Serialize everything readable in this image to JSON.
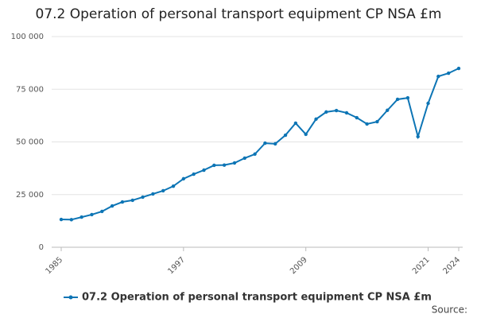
{
  "chart_data": {
    "type": "line",
    "title": "07.2 Operation of personal transport equipment CP NSA £m",
    "x": [
      1985,
      1986,
      1987,
      1988,
      1989,
      1990,
      1991,
      1992,
      1993,
      1994,
      1995,
      1996,
      1997,
      1998,
      1999,
      2000,
      2001,
      2002,
      2003,
      2004,
      2005,
      2006,
      2007,
      2008,
      2009,
      2010,
      2011,
      2012,
      2013,
      2014,
      2015,
      2016,
      2017,
      2018,
      2019,
      2020,
      2021,
      2022,
      2023,
      2024
    ],
    "series": [
      {
        "name": "07.2 Operation of personal transport equipment CP NSA £m",
        "color": "#0d75b5",
        "values": [
          13200,
          13100,
          14300,
          15500,
          17000,
          19600,
          21500,
          22300,
          23800,
          25300,
          26800,
          29000,
          32500,
          34700,
          36600,
          38900,
          39000,
          40000,
          42300,
          44200,
          49400,
          49100,
          53200,
          58900,
          53600,
          60800,
          64200,
          64900,
          63800,
          61500,
          58500,
          59600,
          65000,
          70200,
          70900,
          52500,
          68300,
          81100,
          82600,
          84900
        ]
      }
    ],
    "xlim": [
      1985,
      2024
    ],
    "xticks": [
      1985,
      1997,
      2009,
      2021,
      2024
    ],
    "ylim": [
      0,
      100000
    ],
    "yticks": [
      0,
      {
        "value": 25000,
        "label": "25 000"
      },
      {
        "value": 50000,
        "label": "50 000"
      },
      {
        "value": 75000,
        "label": "75 000"
      },
      {
        "value": 100000,
        "label": "100 000"
      }
    ],
    "grid": true,
    "legend": "bottom",
    "source": "Source:"
  }
}
